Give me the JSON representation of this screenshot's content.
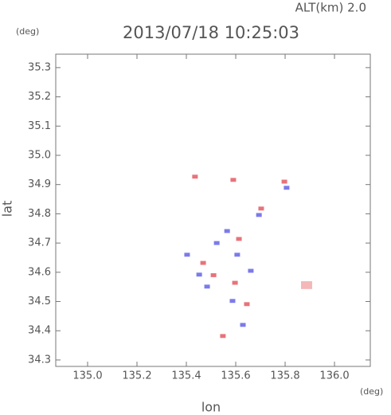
{
  "chart_data": {
    "type": "scatter",
    "title": "2013/07/18 10:25:03",
    "subtitle": "ALT(km) 2.0",
    "x_label": "lon",
    "y_label": "lat",
    "x_unit": "(deg)",
    "y_unit": "(deg)",
    "xlim": [
      134.871,
      136.145
    ],
    "ylim": [
      34.278,
      35.346
    ],
    "xticks": [
      {
        "value": 135,
        "label": "135.0"
      },
      135.2,
      135.4,
      135.6,
      135.8,
      {
        "value": 136,
        "label": "136.0"
      }
    ],
    "yticks": [
      34.3,
      34.4,
      34.5,
      34.6,
      34.7,
      34.8,
      34.9,
      {
        "value": 35,
        "label": "35.0"
      },
      35.1,
      35.2,
      35.3
    ],
    "series": [
      {
        "color": "#e8737a",
        "x": [
          135.435,
          135.59,
          135.797,
          135.703,
          135.468,
          135.597,
          135.645,
          135.548,
          135.51,
          135.613
        ],
        "values": [
          34.927,
          34.916,
          34.91,
          34.818,
          34.632,
          34.564,
          34.491,
          34.382,
          34.59,
          34.714
        ]
      },
      {
        "color": "#7b7bea",
        "x": [
          135.806,
          135.523,
          135.606,
          135.403,
          135.661,
          135.484,
          135.694,
          135.629,
          135.452,
          135.565,
          135.587
        ],
        "values": [
          34.889,
          34.7,
          34.66,
          34.66,
          34.605,
          34.551,
          34.796,
          34.42,
          34.592,
          34.741,
          34.502
        ]
      },
      {
        "color": "#f4b8b8",
        "x": [
          135.887
        ],
        "values": [
          34.556
        ]
      }
    ]
  }
}
